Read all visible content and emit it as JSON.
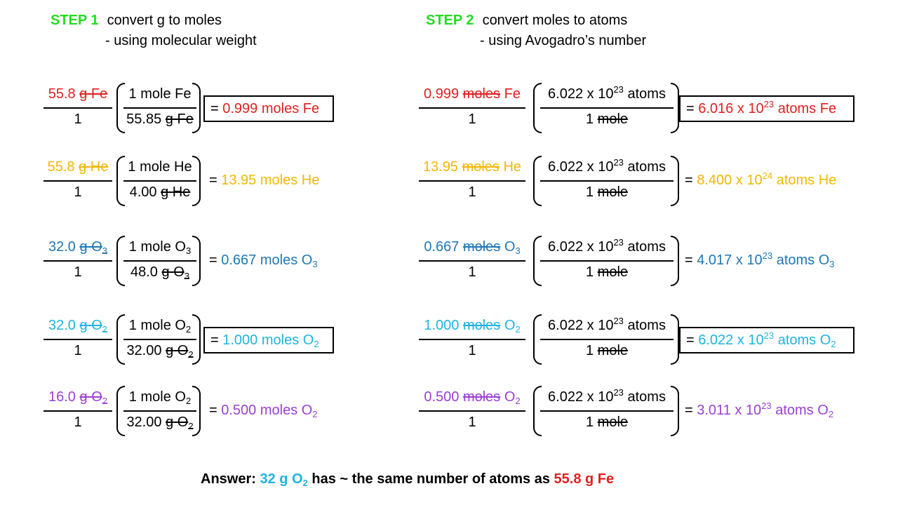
{
  "colors": {
    "step": "#22dd22",
    "fe": "#e02020",
    "he": "#f2b705",
    "o3": "#1f77b4",
    "o2_32": "#1fb3e0",
    "o2_16": "#9b3fd6"
  },
  "step1": {
    "label": "STEP 1",
    "title": "convert g to moles",
    "subtitle": "- using molecular weight"
  },
  "step2": {
    "label": "STEP 2",
    "title": "convert moles to atoms",
    "subtitle": "- using Avogadro’s number"
  },
  "rows": [
    {
      "mass": "55.8",
      "g": "g",
      "species": "Fe",
      "species_sub": "",
      "one": "1",
      "mw": "55.85",
      "mole_label": "1 mole",
      "moles_value": "0.999",
      "moles_word": "moles",
      "eq": "=",
      "avog_mant": "6.022 x 10",
      "avog_exp": "23",
      "atoms_word": "atoms",
      "one_mole": "1",
      "mole_word": "mole",
      "atoms_mant": "6.016 x 10",
      "atoms_exp": "23"
    },
    {
      "mass": "55.8",
      "g": "g",
      "species": "He",
      "species_sub": "",
      "one": "1",
      "mw": "4.00",
      "mole_label": "1 mole",
      "moles_value": "13.95",
      "moles_word": "moles",
      "eq": "=",
      "avog_mant": "6.022 x 10",
      "avog_exp": "23",
      "atoms_word": "atoms",
      "one_mole": "1",
      "mole_word": "mole",
      "atoms_mant": "8.400 x 10",
      "atoms_exp": "24"
    },
    {
      "mass": "32.0",
      "g": "g",
      "species": "O",
      "species_sub": "3",
      "one": "1",
      "mw": "48.0",
      "mole_label": "1 mole",
      "moles_value": "0.667",
      "moles_word": "moles",
      "eq": "=",
      "avog_mant": "6.022 x 10",
      "avog_exp": "23",
      "atoms_word": "atoms",
      "one_mole": "1",
      "mole_word": "mole",
      "atoms_mant": "4.017 x 10",
      "atoms_exp": "23"
    },
    {
      "mass": "32.0",
      "g": "g",
      "species": "O",
      "species_sub": "2",
      "one": "1",
      "mw": "32.00",
      "mole_label": "1 mole",
      "moles_value": "1.000",
      "moles_word": "moles",
      "eq": "=",
      "avog_mant": "6.022 x 10",
      "avog_exp": "23",
      "atoms_word": "atoms",
      "one_mole": "1",
      "mole_word": "mole",
      "atoms_mant": "6.022 x 10",
      "atoms_exp": "23"
    },
    {
      "mass": "16.0",
      "g": "g",
      "species": "O",
      "species_sub": "2",
      "one": "1",
      "mw": "32.00",
      "mole_label": "1 mole",
      "moles_value": "0.500",
      "moles_word": "moles",
      "eq": "=",
      "avog_mant": "6.022 x 10",
      "avog_exp": "23",
      "atoms_word": "atoms",
      "one_mole": "1",
      "mole_word": "mole",
      "atoms_mant": "3.011 x 10",
      "atoms_exp": "23"
    }
  ],
  "answer": {
    "label": "Answer:",
    "amount1": "32 g O",
    "amount1_sub": "2",
    "middle": "has ~ the same number of atoms as",
    "amount2": "55.8 g Fe"
  }
}
